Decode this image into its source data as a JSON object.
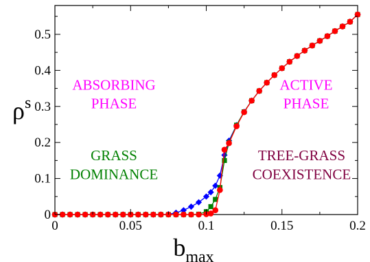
{
  "chart_data": {
    "type": "line",
    "xlabel": "b",
    "xlabel_sub": "max",
    "ylabel": "ρ",
    "ylabel_sup": "s",
    "xlim": [
      0,
      0.2
    ],
    "ylim": [
      0,
      0.58
    ],
    "xticks": [
      0,
      0.05,
      0.1,
      0.15,
      0.2
    ],
    "xtick_labels": [
      "0",
      "0.05",
      "0.1",
      "0.15",
      "0.2"
    ],
    "yticks": [
      0,
      0.1,
      0.2,
      0.3,
      0.4,
      0.5
    ],
    "ytick_labels": [
      "0",
      "0.1",
      "0.2",
      "0.3",
      "0.4",
      "0.5"
    ],
    "grid": false,
    "series": [
      {
        "color": "#0000ff",
        "marker": "diamond",
        "x": [
          0,
          0.005,
          0.01,
          0.015,
          0.02,
          0.025,
          0.03,
          0.035,
          0.04,
          0.045,
          0.05,
          0.055,
          0.06,
          0.065,
          0.07,
          0.075,
          0.08,
          0.085,
          0.09,
          0.095,
          0.1,
          0.103,
          0.106,
          0.109,
          0.112,
          0.115,
          0.12,
          0.125,
          0.13,
          0.135,
          0.14,
          0.145,
          0.15,
          0.155,
          0.16,
          0.165,
          0.17,
          0.175,
          0.18,
          0.185,
          0.19,
          0.195,
          0.2
        ],
        "y": [
          0,
          0,
          0,
          0,
          0,
          0,
          0,
          0,
          0,
          0,
          0,
          0,
          0,
          0,
          0,
          0.001,
          0.005,
          0.012,
          0.022,
          0.034,
          0.05,
          0.062,
          0.08,
          0.108,
          0.165,
          0.205,
          0.248,
          0.285,
          0.316,
          0.343,
          0.366,
          0.387,
          0.406,
          0.424,
          0.44,
          0.455,
          0.469,
          0.482,
          0.495,
          0.509,
          0.522,
          0.535,
          0.555
        ]
      },
      {
        "color": "#008000",
        "marker": "square",
        "x": [
          0,
          0.005,
          0.01,
          0.015,
          0.02,
          0.025,
          0.03,
          0.035,
          0.04,
          0.045,
          0.05,
          0.055,
          0.06,
          0.065,
          0.07,
          0.075,
          0.08,
          0.085,
          0.09,
          0.095,
          0.1,
          0.103,
          0.106,
          0.109,
          0.112,
          0.115,
          0.12,
          0.125,
          0.13,
          0.135,
          0.14,
          0.145,
          0.15,
          0.155,
          0.16,
          0.165,
          0.17,
          0.175,
          0.18,
          0.185,
          0.19,
          0.195,
          0.2
        ],
        "y": [
          0,
          0,
          0,
          0,
          0,
          0,
          0,
          0,
          0,
          0,
          0,
          0,
          0,
          0,
          0,
          0,
          0,
          0,
          0,
          0.001,
          0.008,
          0.022,
          0.042,
          0.075,
          0.15,
          0.2,
          0.248,
          0.285,
          0.316,
          0.343,
          0.366,
          0.387,
          0.406,
          0.424,
          0.44,
          0.455,
          0.469,
          0.482,
          0.495,
          0.509,
          0.522,
          0.535,
          0.555
        ]
      },
      {
        "color": "#ff0000",
        "marker": "circle",
        "x": [
          0,
          0.005,
          0.01,
          0.015,
          0.02,
          0.025,
          0.03,
          0.035,
          0.04,
          0.045,
          0.05,
          0.055,
          0.06,
          0.065,
          0.07,
          0.075,
          0.08,
          0.085,
          0.09,
          0.095,
          0.1,
          0.103,
          0.106,
          0.109,
          0.112,
          0.115,
          0.12,
          0.125,
          0.13,
          0.135,
          0.14,
          0.145,
          0.15,
          0.155,
          0.16,
          0.165,
          0.17,
          0.175,
          0.18,
          0.185,
          0.19,
          0.195,
          0.2
        ],
        "y": [
          0,
          0,
          0,
          0,
          0,
          0,
          0,
          0,
          0,
          0,
          0,
          0,
          0,
          0,
          0,
          0,
          0,
          0,
          0,
          0,
          0.001,
          0.003,
          0.012,
          0.068,
          0.18,
          0.198,
          0.245,
          0.284,
          0.316,
          0.343,
          0.366,
          0.387,
          0.406,
          0.424,
          0.44,
          0.455,
          0.469,
          0.482,
          0.495,
          0.509,
          0.522,
          0.535,
          0.555
        ]
      }
    ],
    "annotations": [
      {
        "lines": [
          "ABSORBING",
          "PHASE"
        ],
        "color": "#ff00ff",
        "x": 0.039,
        "y": [
          0.346,
          0.295
        ]
      },
      {
        "lines": [
          "ACTIVE",
          "PHASE"
        ],
        "color": "#ff00ff",
        "x": 0.166,
        "y": [
          0.346,
          0.295
        ]
      },
      {
        "lines": [
          "GRASS",
          "DOMINANCE"
        ],
        "color": "#008000",
        "x": 0.039,
        "y": [
          0.151,
          0.098
        ]
      },
      {
        "lines": [
          "TREE-GRASS",
          "COEXISTENCE"
        ],
        "color": "#800040",
        "x": 0.163,
        "y": [
          0.151,
          0.098
        ]
      }
    ]
  }
}
